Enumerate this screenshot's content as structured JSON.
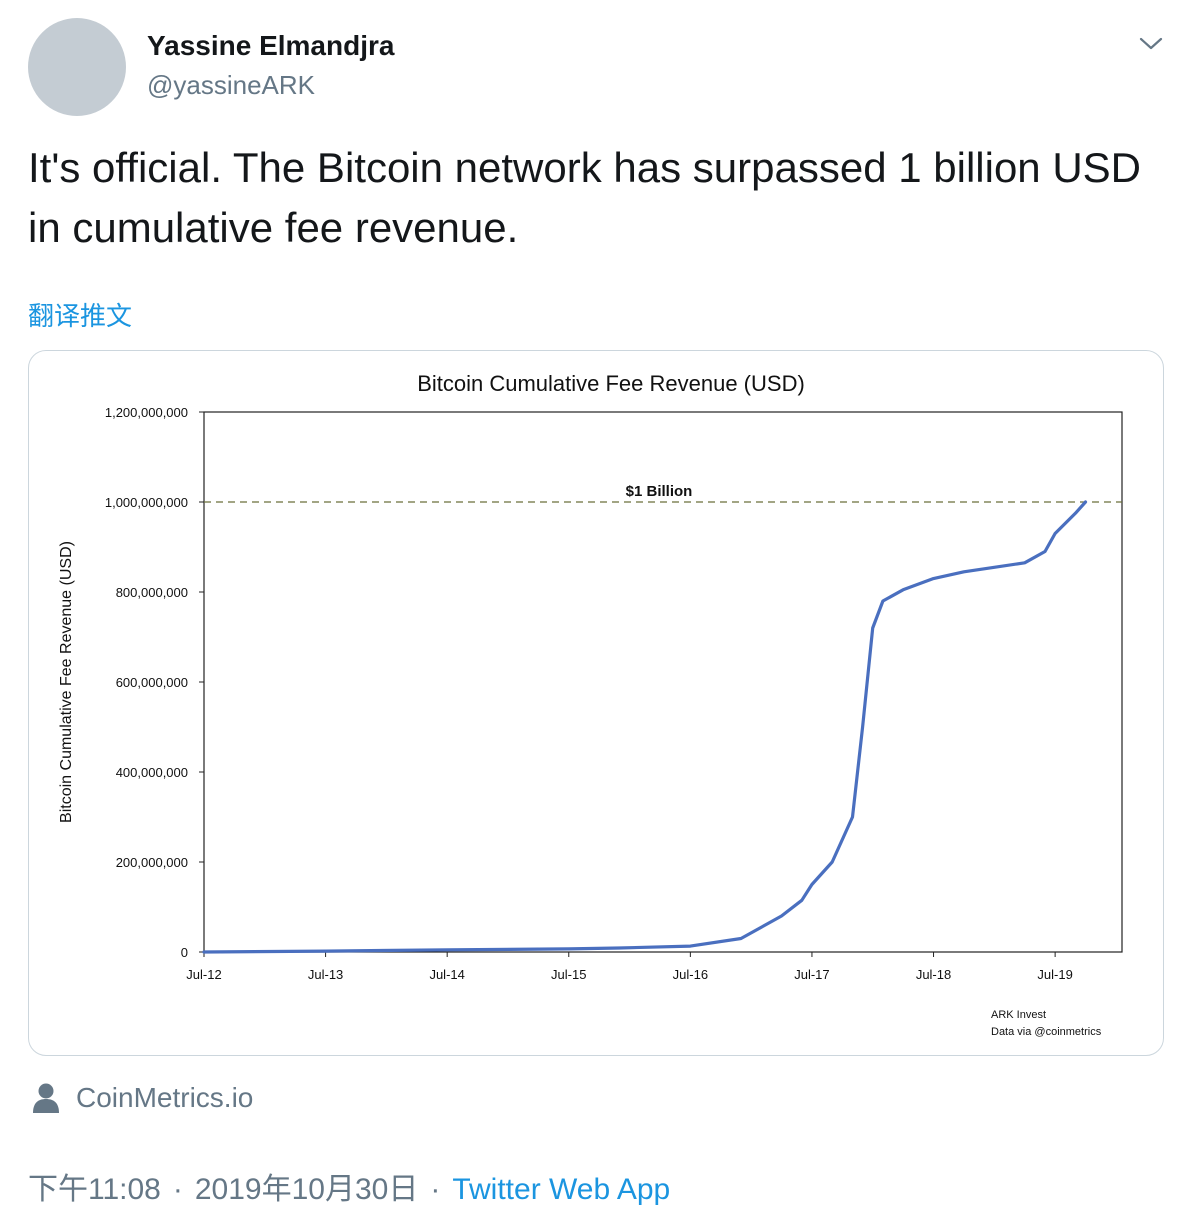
{
  "user": {
    "name": "Yassine Elmandjra",
    "handle": "@yassineARK"
  },
  "tweet": {
    "text": "It's official. The Bitcoin network has surpassed 1 billion USD in cumulative fee revenue.",
    "translate_label": "翻译推文"
  },
  "card": {
    "source_label": "CoinMetrics.io"
  },
  "meta": {
    "time": "下午11:08",
    "date": "2019年10月30日",
    "separator": "·",
    "app": "Twitter Web App"
  },
  "chart_data": {
    "type": "line",
    "title": "Bitcoin Cumulative Fee Revenue (USD)",
    "ylabel": "Bitcoin Cumulative Fee Revenue (USD)",
    "xlabel": "",
    "ylim": [
      0,
      1200000000
    ],
    "yticks": [
      0,
      200000000,
      400000000,
      600000000,
      800000000,
      1000000000,
      1200000000
    ],
    "ytick_labels": [
      "0",
      "200,000,000",
      "400,000,000",
      "600,000,000",
      "800,000,000",
      "1,000,000,000",
      "1,200,000,000"
    ],
    "xticks": [
      "Jul-12",
      "Jul-13",
      "Jul-14",
      "Jul-15",
      "Jul-16",
      "Jul-17",
      "Jul-18",
      "Jul-19"
    ],
    "reference_line": {
      "value": 1000000000,
      "label": "$1 Billion",
      "style": "dashed"
    },
    "series": [
      {
        "x": [
          "2012-07",
          "2013-07",
          "2014-07",
          "2015-07",
          "2015-12",
          "2016-07",
          "2016-12",
          "2017-04",
          "2017-06",
          "2017-07",
          "2017-09",
          "2017-11",
          "2017-12",
          "2018-01",
          "2018-02",
          "2018-04",
          "2018-07",
          "2018-10",
          "2019-01",
          "2019-04",
          "2019-06",
          "2019-07",
          "2019-09",
          "2019-10"
        ],
        "values": [
          0,
          2000000,
          5000000,
          7000000,
          9000000,
          13000000,
          30000000,
          80000000,
          115000000,
          150000000,
          200000000,
          300000000,
          500000000,
          720000000,
          780000000,
          805000000,
          830000000,
          845000000,
          855000000,
          865000000,
          890000000,
          930000000,
          975000000,
          1000000000
        ]
      }
    ],
    "color": "#4a6fbf",
    "annotation": [
      "ARK Invest",
      "Data via @coinmetrics"
    ],
    "grid": false
  }
}
